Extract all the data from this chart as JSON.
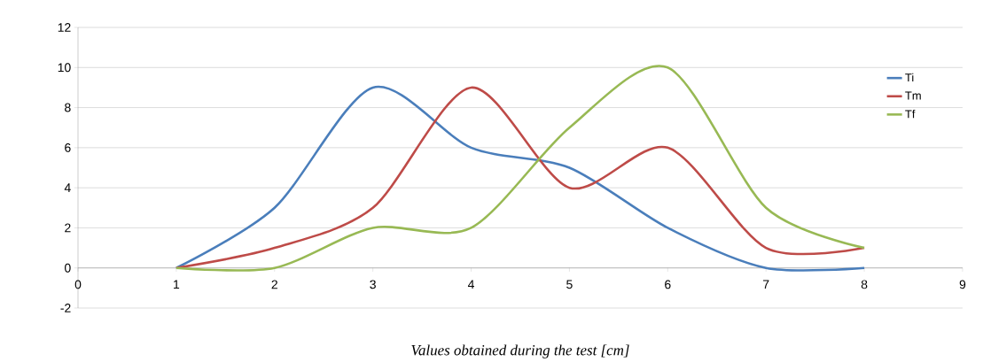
{
  "chart_data": {
    "type": "line",
    "xlabel": "Values obtained during the test [cm]",
    "x": [
      1,
      2,
      3,
      4,
      5,
      6,
      7,
      8
    ],
    "series": [
      {
        "name": "Ti",
        "color": "#4a7ebb",
        "values": [
          0,
          3,
          9,
          6,
          5,
          2,
          0,
          0
        ]
      },
      {
        "name": "Tm",
        "color": "#be4b48",
        "values": [
          0,
          1,
          3,
          9,
          4,
          6,
          1,
          1
        ]
      },
      {
        "name": "Tf",
        "color": "#98b954",
        "values": [
          0,
          0,
          2,
          2,
          7,
          10,
          3,
          1
        ]
      }
    ],
    "xlim": [
      0,
      9
    ],
    "xticks": [
      0,
      1,
      2,
      3,
      4,
      5,
      6,
      7,
      8,
      9
    ],
    "ylim": [
      -2,
      12
    ],
    "yticks": [
      -2,
      0,
      2,
      4,
      6,
      8,
      10,
      12
    ],
    "grid": "y",
    "legend": "right",
    "marker": "none",
    "line_style": "solid"
  }
}
